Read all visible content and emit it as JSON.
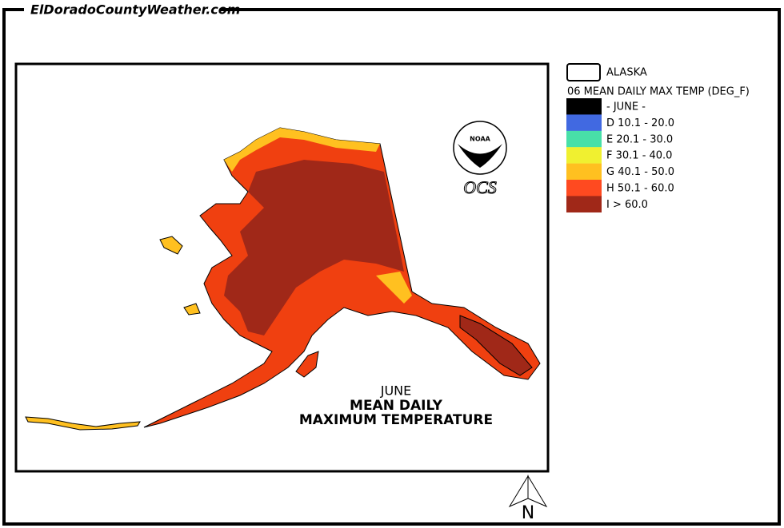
{
  "header": {
    "site": "ElDoradoCountyWeather.com"
  },
  "map": {
    "title": [
      "JUNE",
      "MEAN DAILY",
      "MAXIMUM TEMPERATURE"
    ],
    "logo": {
      "agency": "NOAA",
      "office": "OCS"
    },
    "north": "N"
  },
  "legend": {
    "layer": "ALASKA",
    "title": "06 MEAN DAILY MAX TEMP (DEG_F)",
    "items": [
      {
        "label": "- JUNE -",
        "color": "#000000"
      },
      {
        "label": "D  10.1 - 20.0",
        "color": "#4169e1"
      },
      {
        "label": "E  20.1 - 30.0",
        "color": "#48e0a8"
      },
      {
        "label": "F  30.1 - 40.0",
        "color": "#f0f030"
      },
      {
        "label": "G  40.1 - 50.0",
        "color": "#ffc020"
      },
      {
        "label": "H  50.1 - 60.0",
        "color": "#ff4a20"
      },
      {
        "label": "I  > 60.0",
        "color": "#a02818"
      }
    ]
  }
}
